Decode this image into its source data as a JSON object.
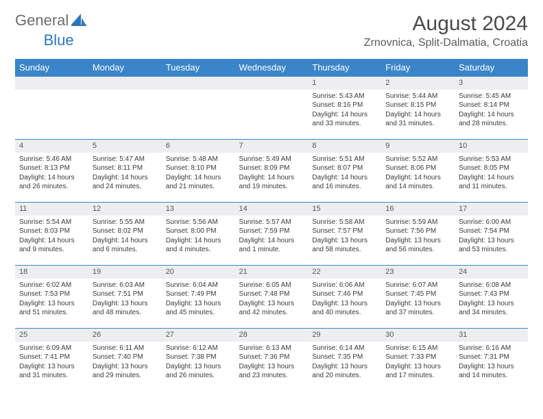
{
  "logo": {
    "text1": "General",
    "text2": "Blue"
  },
  "title": "August 2024",
  "location": "Zrnovnica, Split-Dalmatia, Croatia",
  "colors": {
    "header_bg": "#3a85c9",
    "header_text": "#ffffff",
    "daynum_bg": "#eceef0",
    "grid_line": "#3a85c9",
    "logo_blue": "#2d76bb",
    "body_text": "#3a3a3a"
  },
  "weekdays": [
    "Sunday",
    "Monday",
    "Tuesday",
    "Wednesday",
    "Thursday",
    "Friday",
    "Saturday"
  ],
  "weeks": [
    [
      null,
      null,
      null,
      null,
      {
        "n": "1",
        "sr": "Sunrise: 5:43 AM",
        "ss": "Sunset: 8:16 PM",
        "d1": "Daylight: 14 hours",
        "d2": "and 33 minutes."
      },
      {
        "n": "2",
        "sr": "Sunrise: 5:44 AM",
        "ss": "Sunset: 8:15 PM",
        "d1": "Daylight: 14 hours",
        "d2": "and 31 minutes."
      },
      {
        "n": "3",
        "sr": "Sunrise: 5:45 AM",
        "ss": "Sunset: 8:14 PM",
        "d1": "Daylight: 14 hours",
        "d2": "and 28 minutes."
      }
    ],
    [
      {
        "n": "4",
        "sr": "Sunrise: 5:46 AM",
        "ss": "Sunset: 8:13 PM",
        "d1": "Daylight: 14 hours",
        "d2": "and 26 minutes."
      },
      {
        "n": "5",
        "sr": "Sunrise: 5:47 AM",
        "ss": "Sunset: 8:11 PM",
        "d1": "Daylight: 14 hours",
        "d2": "and 24 minutes."
      },
      {
        "n": "6",
        "sr": "Sunrise: 5:48 AM",
        "ss": "Sunset: 8:10 PM",
        "d1": "Daylight: 14 hours",
        "d2": "and 21 minutes."
      },
      {
        "n": "7",
        "sr": "Sunrise: 5:49 AM",
        "ss": "Sunset: 8:09 PM",
        "d1": "Daylight: 14 hours",
        "d2": "and 19 minutes."
      },
      {
        "n": "8",
        "sr": "Sunrise: 5:51 AM",
        "ss": "Sunset: 8:07 PM",
        "d1": "Daylight: 14 hours",
        "d2": "and 16 minutes."
      },
      {
        "n": "9",
        "sr": "Sunrise: 5:52 AM",
        "ss": "Sunset: 8:06 PM",
        "d1": "Daylight: 14 hours",
        "d2": "and 14 minutes."
      },
      {
        "n": "10",
        "sr": "Sunrise: 5:53 AM",
        "ss": "Sunset: 8:05 PM",
        "d1": "Daylight: 14 hours",
        "d2": "and 11 minutes."
      }
    ],
    [
      {
        "n": "11",
        "sr": "Sunrise: 5:54 AM",
        "ss": "Sunset: 8:03 PM",
        "d1": "Daylight: 14 hours",
        "d2": "and 9 minutes."
      },
      {
        "n": "12",
        "sr": "Sunrise: 5:55 AM",
        "ss": "Sunset: 8:02 PM",
        "d1": "Daylight: 14 hours",
        "d2": "and 6 minutes."
      },
      {
        "n": "13",
        "sr": "Sunrise: 5:56 AM",
        "ss": "Sunset: 8:00 PM",
        "d1": "Daylight: 14 hours",
        "d2": "and 4 minutes."
      },
      {
        "n": "14",
        "sr": "Sunrise: 5:57 AM",
        "ss": "Sunset: 7:59 PM",
        "d1": "Daylight: 14 hours",
        "d2": "and 1 minute."
      },
      {
        "n": "15",
        "sr": "Sunrise: 5:58 AM",
        "ss": "Sunset: 7:57 PM",
        "d1": "Daylight: 13 hours",
        "d2": "and 58 minutes."
      },
      {
        "n": "16",
        "sr": "Sunrise: 5:59 AM",
        "ss": "Sunset: 7:56 PM",
        "d1": "Daylight: 13 hours",
        "d2": "and 56 minutes."
      },
      {
        "n": "17",
        "sr": "Sunrise: 6:00 AM",
        "ss": "Sunset: 7:54 PM",
        "d1": "Daylight: 13 hours",
        "d2": "and 53 minutes."
      }
    ],
    [
      {
        "n": "18",
        "sr": "Sunrise: 6:02 AM",
        "ss": "Sunset: 7:53 PM",
        "d1": "Daylight: 13 hours",
        "d2": "and 51 minutes."
      },
      {
        "n": "19",
        "sr": "Sunrise: 6:03 AM",
        "ss": "Sunset: 7:51 PM",
        "d1": "Daylight: 13 hours",
        "d2": "and 48 minutes."
      },
      {
        "n": "20",
        "sr": "Sunrise: 6:04 AM",
        "ss": "Sunset: 7:49 PM",
        "d1": "Daylight: 13 hours",
        "d2": "and 45 minutes."
      },
      {
        "n": "21",
        "sr": "Sunrise: 6:05 AM",
        "ss": "Sunset: 7:48 PM",
        "d1": "Daylight: 13 hours",
        "d2": "and 42 minutes."
      },
      {
        "n": "22",
        "sr": "Sunrise: 6:06 AM",
        "ss": "Sunset: 7:46 PM",
        "d1": "Daylight: 13 hours",
        "d2": "and 40 minutes."
      },
      {
        "n": "23",
        "sr": "Sunrise: 6:07 AM",
        "ss": "Sunset: 7:45 PM",
        "d1": "Daylight: 13 hours",
        "d2": "and 37 minutes."
      },
      {
        "n": "24",
        "sr": "Sunrise: 6:08 AM",
        "ss": "Sunset: 7:43 PM",
        "d1": "Daylight: 13 hours",
        "d2": "and 34 minutes."
      }
    ],
    [
      {
        "n": "25",
        "sr": "Sunrise: 6:09 AM",
        "ss": "Sunset: 7:41 PM",
        "d1": "Daylight: 13 hours",
        "d2": "and 31 minutes."
      },
      {
        "n": "26",
        "sr": "Sunrise: 6:11 AM",
        "ss": "Sunset: 7:40 PM",
        "d1": "Daylight: 13 hours",
        "d2": "and 29 minutes."
      },
      {
        "n": "27",
        "sr": "Sunrise: 6:12 AM",
        "ss": "Sunset: 7:38 PM",
        "d1": "Daylight: 13 hours",
        "d2": "and 26 minutes."
      },
      {
        "n": "28",
        "sr": "Sunrise: 6:13 AM",
        "ss": "Sunset: 7:36 PM",
        "d1": "Daylight: 13 hours",
        "d2": "and 23 minutes."
      },
      {
        "n": "29",
        "sr": "Sunrise: 6:14 AM",
        "ss": "Sunset: 7:35 PM",
        "d1": "Daylight: 13 hours",
        "d2": "and 20 minutes."
      },
      {
        "n": "30",
        "sr": "Sunrise: 6:15 AM",
        "ss": "Sunset: 7:33 PM",
        "d1": "Daylight: 13 hours",
        "d2": "and 17 minutes."
      },
      {
        "n": "31",
        "sr": "Sunrise: 6:16 AM",
        "ss": "Sunset: 7:31 PM",
        "d1": "Daylight: 13 hours",
        "d2": "and 14 minutes."
      }
    ]
  ]
}
